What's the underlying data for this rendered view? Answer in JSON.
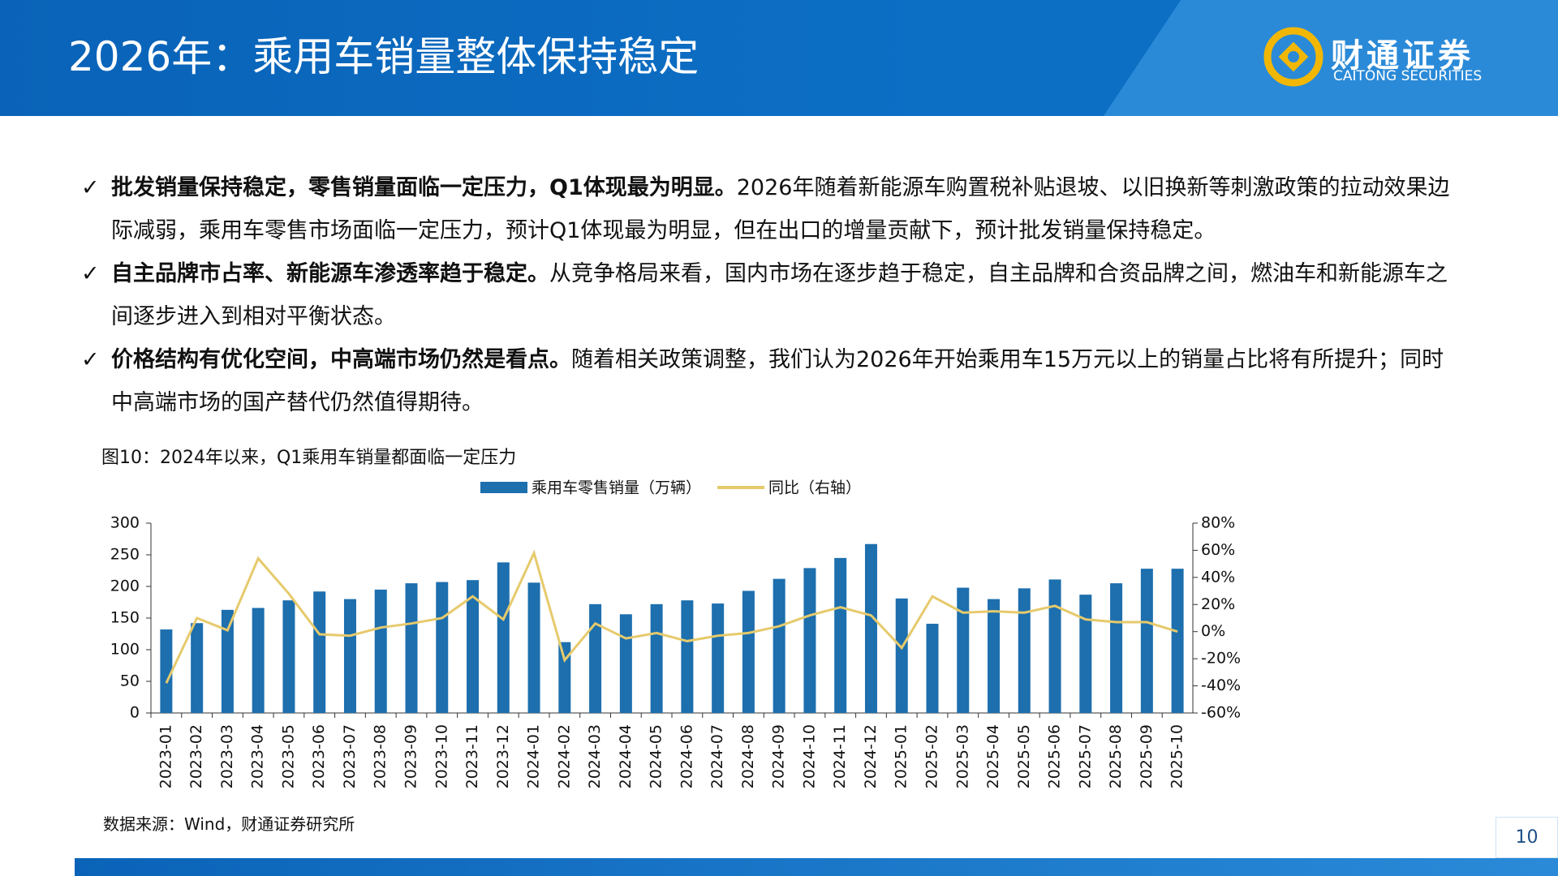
{
  "header": {
    "title": "2026年：乘用车销量整体保持稳定",
    "logo_cn": "财通证券",
    "logo_en": "CAITONG SECURITIES"
  },
  "bullets": [
    {
      "bold": "批发销量保持稳定，零售销量面临一定压力，Q1体现最为明显。",
      "text": "2026年随着新能源车购置税补贴退坡、以旧换新等刺激政策的拉动效果边际减弱，乘用车零售市场面临一定压力，预计Q1体现最为明显，但在出口的增量贡献下，预计批发销量保持稳定。"
    },
    {
      "bold": "自主品牌市占率、新能源车渗透率趋于稳定。",
      "text": "从竞争格局来看，国内市场在逐步趋于稳定，自主品牌和合资品牌之间，燃油车和新能源车之间逐步进入到相对平衡状态。"
    },
    {
      "bold": "价格结构有优化空间，中高端市场仍然是看点。",
      "text": "随着相关政策调整，我们认为2026年开始乘用车15万元以上的销量占比将有所提升；同时中高端市场的国产替代仍然值得期待。"
    }
  ],
  "chart_data": {
    "type": "bar",
    "title": "图10：2024年以来，Q1乘用车销量都面临一定压力",
    "categories": [
      "2023-01",
      "2023-02",
      "2023-03",
      "2023-04",
      "2023-05",
      "2023-06",
      "2023-07",
      "2023-08",
      "2023-09",
      "2023-10",
      "2023-11",
      "2023-12",
      "2024-01",
      "2024-02",
      "2024-03",
      "2024-04",
      "2024-05",
      "2024-06",
      "2024-07",
      "2024-08",
      "2024-09",
      "2024-10",
      "2024-11",
      "2024-12",
      "2025-01",
      "2025-02",
      "2025-03",
      "2025-04",
      "2025-05",
      "2025-06",
      "2025-07",
      "2025-08",
      "2025-09",
      "2025-10"
    ],
    "series": [
      {
        "name": "乘用车零售销量（万辆）",
        "type": "bar",
        "color": "#1d6fae",
        "values": [
          132,
          142,
          163,
          166,
          178,
          192,
          180,
          195,
          205,
          207,
          210,
          238,
          206,
          112,
          172,
          156,
          172,
          178,
          173,
          193,
          212,
          229,
          245,
          267,
          181,
          141,
          198,
          180,
          197,
          211,
          187,
          205,
          228,
          228
        ]
      },
      {
        "name": "同比（右轴）",
        "type": "line",
        "axis": "y2",
        "color": "#e6ca6c",
        "values": [
          -38,
          10,
          1,
          54,
          28,
          -2,
          -3,
          3,
          6,
          10,
          26,
          9,
          58,
          -21,
          6,
          -5,
          -1,
          -7,
          -3,
          -1,
          4,
          12,
          18,
          12,
          -12,
          26,
          14,
          15,
          14,
          19,
          9,
          7,
          7,
          0
        ]
      }
    ],
    "ylim": [
      0,
      300
    ],
    "yticks": [
      0,
      50,
      100,
      150,
      200,
      250,
      300
    ],
    "y2lim": [
      -60,
      80
    ],
    "y2ticks": [
      {
        "value": -60,
        "label": "-60%"
      },
      {
        "value": -40,
        "label": "-40%"
      },
      {
        "value": -20,
        "label": "-20%"
      },
      {
        "value": 0,
        "label": "0%"
      },
      {
        "value": 20,
        "label": "20%"
      },
      {
        "value": 40,
        "label": "40%"
      },
      {
        "value": 60,
        "label": "60%"
      },
      {
        "value": 80,
        "label": "80%"
      }
    ]
  },
  "footer": {
    "source": "数据来源：Wind，财通证券研究所",
    "page_number": 10
  }
}
